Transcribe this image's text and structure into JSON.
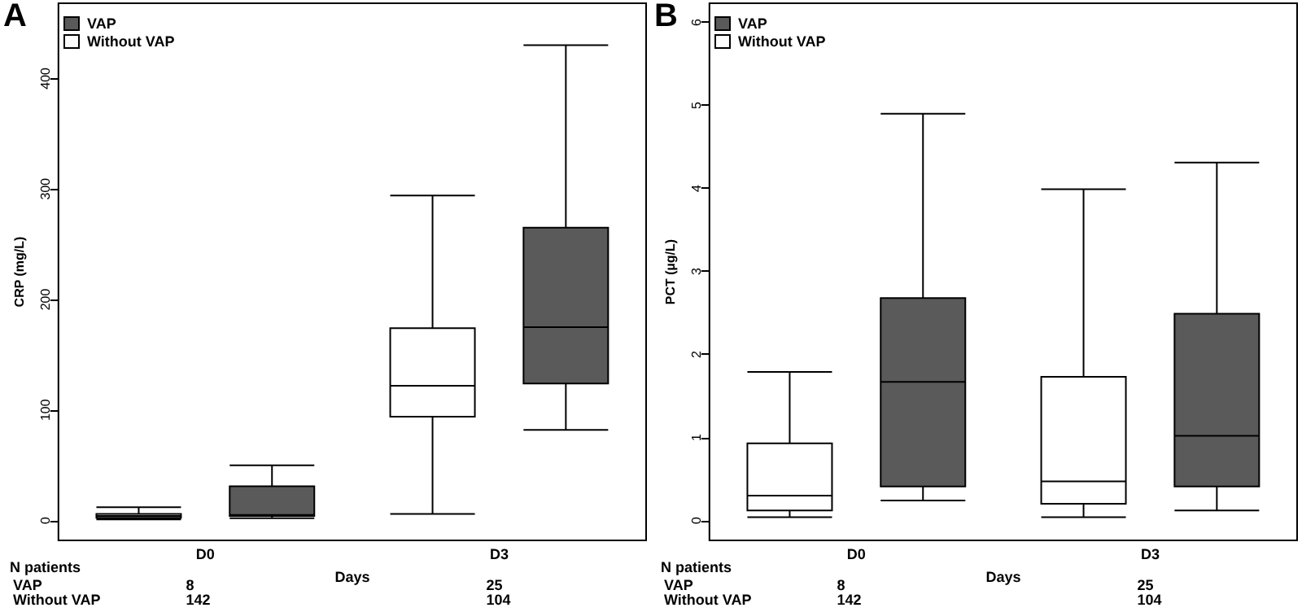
{
  "chart_data": [
    {
      "type": "box",
      "title": "A",
      "xlabel": "Days",
      "ylabel": "CRP (mg/L)",
      "categories": [
        "D0",
        "D3"
      ],
      "ylim": [
        -18,
        468
      ],
      "yticks": [
        0,
        100,
        200,
        300,
        400
      ],
      "grid": false,
      "legend": "top left",
      "series": [
        {
          "name": "Without VAP",
          "color": "#ffffff",
          "boxes": [
            {
              "low": 1,
              "q1": 2.5,
              "median": 4,
              "q3": 6,
              "high": 12
            },
            {
              "low": 6,
              "q1": 94,
              "median": 122,
              "q3": 174,
              "high": 294
            }
          ]
        },
        {
          "name": "VAP",
          "color": "#5a5a5a",
          "boxes": [
            {
              "low": 2,
              "q1": 4,
              "median": 5,
              "q3": 31,
              "high": 50
            },
            {
              "low": 82,
              "q1": 124,
              "median": 175,
              "q3": 265,
              "high": 430
            }
          ]
        }
      ],
      "annotations": [
        "N patients",
        "VAP",
        "8",
        "25",
        "Without VAP",
        "142",
        "104"
      ]
    },
    {
      "type": "box",
      "title": "B",
      "xlabel": "Days",
      "ylabel": "PCT (µg/L)",
      "categories": [
        "D0",
        "D3"
      ],
      "ylim": [
        -0.24,
        6.23
      ],
      "yticks": [
        0,
        1,
        2,
        3,
        4,
        5,
        6
      ],
      "grid": false,
      "legend": "top left",
      "series": [
        {
          "name": "Without VAP",
          "color": "#ffffff",
          "boxes": [
            {
              "low": 0.04,
              "q1": 0.12,
              "median": 0.3,
              "q3": 0.93,
              "high": 1.79
            },
            {
              "low": 0.04,
              "q1": 0.2,
              "median": 0.47,
              "q3": 1.73,
              "high": 3.99
            }
          ]
        },
        {
          "name": "VAP",
          "color": "#5a5a5a",
          "boxes": [
            {
              "low": 0.24,
              "q1": 0.41,
              "median": 1.67,
              "q3": 2.68,
              "high": 4.9
            },
            {
              "low": 0.12,
              "q1": 0.41,
              "median": 1.02,
              "q3": 2.49,
              "high": 4.31
            }
          ]
        }
      ],
      "annotations": [
        "N patients",
        "VAP",
        "8",
        "25",
        "Without VAP",
        "142",
        "104"
      ]
    }
  ]
}
